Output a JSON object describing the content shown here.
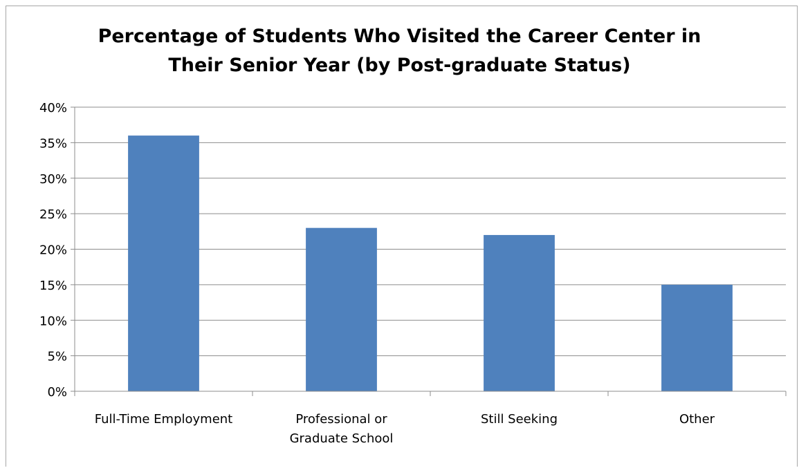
{
  "chart_data": {
    "type": "bar",
    "title_lines": [
      "Percentage of Students Who Visited the Career Center in",
      "Their Senior Year (by Post-graduate Status)"
    ],
    "categories": [
      [
        "Full-Time Employment"
      ],
      [
        "Professional or",
        "Graduate School"
      ],
      [
        "Still Seeking"
      ],
      [
        "Other"
      ]
    ],
    "values": [
      36,
      23,
      22,
      15
    ],
    "ylim": [
      0,
      40
    ],
    "y_ticks": [
      0,
      5,
      10,
      15,
      20,
      25,
      30,
      35,
      40
    ],
    "y_tick_format": "%",
    "grid": true,
    "bar_color": "#4f81bd",
    "xlabel": "",
    "ylabel": ""
  }
}
